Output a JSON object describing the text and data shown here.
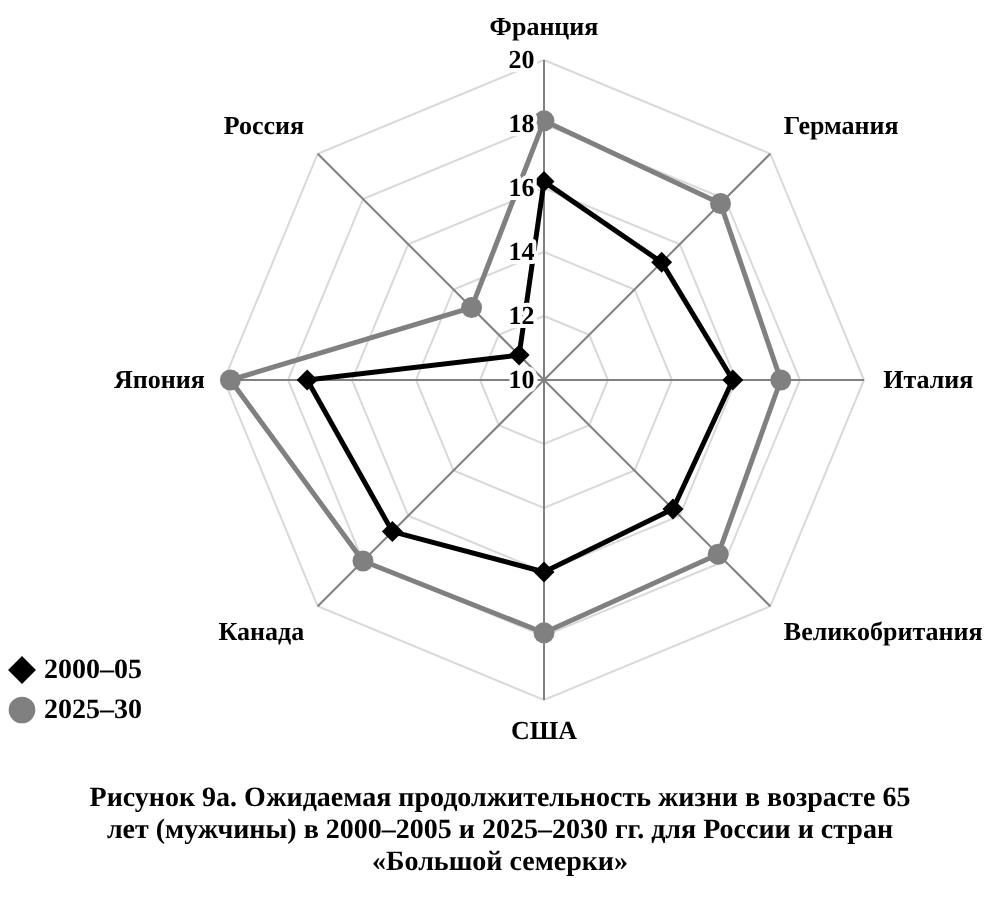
{
  "chart_data": {
    "type": "radar",
    "title": "Рисунок 9а. Ожидаемая продолжительность жизни в возрасте 65 лет (мужчины) в 2000–2005 и 2025–2030 гг. для России и стран «Большой семерки»",
    "categories": [
      "Франция",
      "Германия",
      "Италия",
      "Великобритания",
      "США",
      "Канада",
      "Япония",
      "Россия"
    ],
    "series": [
      {
        "name": "2000–05",
        "color": "#000000",
        "marker": "diamond",
        "values": [
          16.2,
          15.2,
          15.9,
          15.7,
          16.0,
          16.7,
          17.4,
          11.1
        ]
      },
      {
        "name": "2025–30",
        "color": "#808080",
        "marker": "circle",
        "values": [
          18.1,
          17.8,
          17.4,
          17.7,
          17.9,
          18.0,
          19.8,
          13.2
        ]
      }
    ],
    "ylim": [
      10,
      20
    ],
    "yticks": [
      10,
      12,
      14,
      16,
      18,
      20
    ],
    "grid": true,
    "legend": "bottom left",
    "line_style": "solid"
  }
}
